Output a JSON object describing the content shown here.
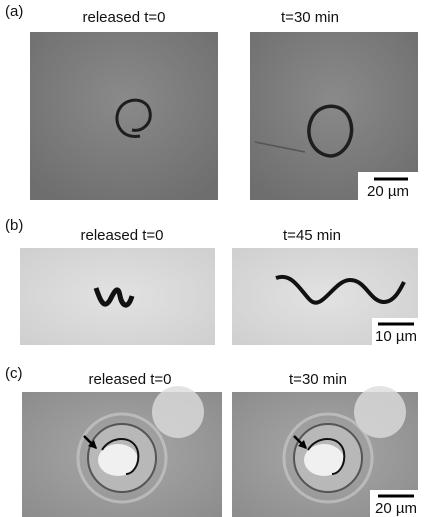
{
  "panels": [
    {
      "label": "(a)",
      "images": [
        {
          "title": "released t=0"
        },
        {
          "title": "t=30 min"
        }
      ],
      "scale_bar": "20 µm"
    },
    {
      "label": "(b)",
      "images": [
        {
          "title": "released t=0"
        },
        {
          "title": "t=45 min"
        }
      ],
      "scale_bar": "10 µm"
    },
    {
      "label": "(c)",
      "images": [
        {
          "title": "released t=0"
        },
        {
          "title": "t=30 min"
        }
      ],
      "scale_bar": "20 µm"
    }
  ]
}
